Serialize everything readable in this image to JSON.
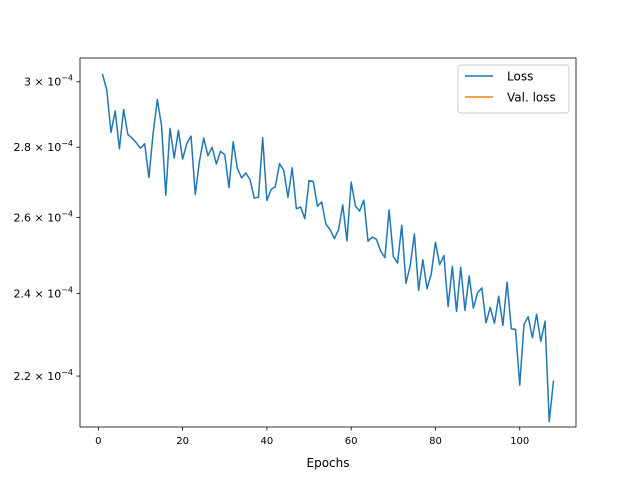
{
  "chart_data": {
    "type": "line",
    "xlabel": "Epochs",
    "ylabel": "",
    "title": "",
    "xlim": [
      -4.35,
      113.35
    ],
    "ylim": [
      0.0002085,
      0.0003076
    ],
    "yscale": "log",
    "grid": false,
    "legend_position": "upper right",
    "x_ticks": [
      {
        "value": 0,
        "label": "0"
      },
      {
        "value": 20,
        "label": "20"
      },
      {
        "value": 40,
        "label": "40"
      },
      {
        "value": 60,
        "label": "60"
      },
      {
        "value": 80,
        "label": "80"
      },
      {
        "value": 100,
        "label": "100"
      }
    ],
    "y_ticks": [
      {
        "value": 0.00022,
        "mantissa": "2.2",
        "base": "10",
        "exp": "−4"
      },
      {
        "value": 0.00024,
        "mantissa": "2.4",
        "base": "10",
        "exp": "−4"
      },
      {
        "value": 0.00026,
        "mantissa": "2.6",
        "base": "10",
        "exp": "−4"
      },
      {
        "value": 0.00028,
        "mantissa": "2.8",
        "base": "10",
        "exp": "−4"
      },
      {
        "value": 0.0003,
        "mantissa": "3",
        "base": "10",
        "exp": "−4"
      }
    ],
    "series": [
      {
        "name": "Loss",
        "color": "#1f77b4",
        "x_start": 1,
        "x_step": 1,
        "values": [
          0.0003023,
          0.0002975,
          0.0002844,
          0.0002909,
          0.0002795,
          0.0002914,
          0.0002838,
          0.0002827,
          0.0002813,
          0.0002797,
          0.000281,
          0.0002712,
          0.0002841,
          0.0002944,
          0.0002864,
          0.0002662,
          0.0002856,
          0.0002768,
          0.000285,
          0.0002765,
          0.0002811,
          0.0002833,
          0.0002664,
          0.0002759,
          0.0002827,
          0.0002775,
          0.00028,
          0.0002751,
          0.0002788,
          0.0002778,
          0.0002683,
          0.0002816,
          0.0002738,
          0.0002711,
          0.0002725,
          0.0002706,
          0.0002654,
          0.0002656,
          0.0002828,
          0.0002647,
          0.0002678,
          0.0002686,
          0.0002752,
          0.0002732,
          0.0002656,
          0.000274,
          0.0002624,
          0.0002629,
          0.0002597,
          0.0002703,
          0.0002701,
          0.0002631,
          0.0002643,
          0.0002582,
          0.0002567,
          0.0002543,
          0.0002567,
          0.0002635,
          0.0002537,
          0.0002699,
          0.0002632,
          0.0002618,
          0.0002648,
          0.0002536,
          0.0002547,
          0.0002541,
          0.000251,
          0.0002492,
          0.0002621,
          0.0002496,
          0.0002478,
          0.0002579,
          0.0002426,
          0.0002471,
          0.0002555,
          0.0002408,
          0.0002487,
          0.0002412,
          0.000245,
          0.0002533,
          0.0002474,
          0.0002498,
          0.0002367,
          0.0002469,
          0.0002355,
          0.0002467,
          0.0002358,
          0.0002445,
          0.0002363,
          0.0002402,
          0.0002414,
          0.0002327,
          0.0002365,
          0.0002326,
          0.0002393,
          0.0002321,
          0.0002429,
          0.0002312,
          0.0002311,
          0.0002179,
          0.0002323,
          0.0002342,
          0.0002291,
          0.0002348,
          0.0002282,
          0.0002331,
          0.0002097,
          0.0002188
        ]
      },
      {
        "name": "Val. loss",
        "color": "#ff7f0e",
        "x_start": 1,
        "x_step": 1,
        "values": []
      }
    ]
  }
}
